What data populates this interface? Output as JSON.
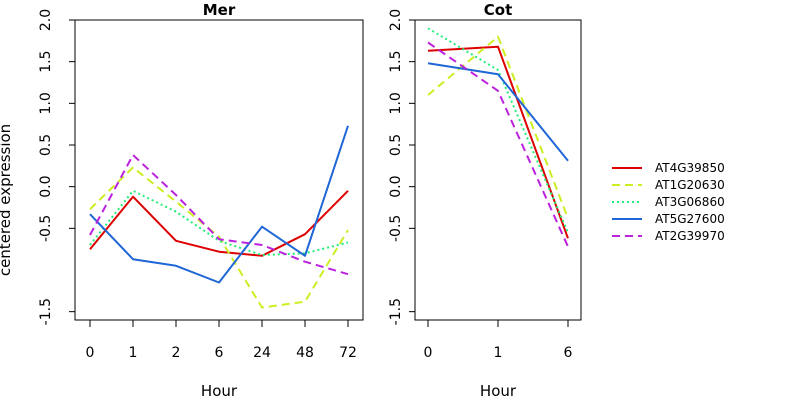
{
  "figure": {
    "ylabel": "centered expression",
    "legend": {
      "placement": "right",
      "entries": [
        {
          "name": "AT4G39850",
          "color": "#dd0000",
          "dash": "solid"
        },
        {
          "name": "AT1G20630",
          "color": "#ccee22",
          "dash": "dashed"
        },
        {
          "name": "AT3G06860",
          "color": "#22ee77",
          "dash": "dotted"
        },
        {
          "name": "AT5G27600",
          "color": "#1f66d6",
          "dash": "solid"
        },
        {
          "name": "AT2G39970",
          "color": "#bb22dd",
          "dash": "dashed"
        }
      ]
    }
  },
  "chart_data": [
    {
      "type": "line",
      "title": "Mer",
      "xlabel": "Hour",
      "categories": [
        "0",
        "1",
        "2",
        "6",
        "24",
        "48",
        "72"
      ],
      "ylim": [
        -1.6,
        2.0
      ],
      "yticks": [
        -1.5,
        -0.5,
        0.0,
        0.5,
        1.0,
        1.5,
        2.0
      ],
      "ytick_labels": [
        "-1.5",
        "-0.5",
        "0.0",
        "0.5",
        "1.0",
        "1.5",
        "2.0"
      ],
      "series": [
        {
          "name": "AT4G39850",
          "values": [
            -0.75,
            -0.12,
            -0.65,
            -0.78,
            -0.83,
            -0.57,
            -0.05
          ]
        },
        {
          "name": "AT1G20630",
          "values": [
            -0.27,
            0.23,
            -0.18,
            -0.6,
            -1.45,
            -1.38,
            -0.52
          ]
        },
        {
          "name": "AT3G06860",
          "values": [
            -0.7,
            -0.05,
            -0.3,
            -0.65,
            -0.82,
            -0.8,
            -0.67
          ]
        },
        {
          "name": "AT5G27600",
          "values": [
            -0.33,
            -0.87,
            -0.95,
            -1.15,
            -0.48,
            -0.83,
            0.73
          ]
        },
        {
          "name": "AT2G39970",
          "values": [
            -0.58,
            0.38,
            -0.1,
            -0.63,
            -0.7,
            -0.9,
            -1.05
          ]
        }
      ]
    },
    {
      "type": "line",
      "title": "Cot",
      "xlabel": "Hour",
      "categories": [
        "0",
        "1",
        "6"
      ],
      "ylim": [
        -1.6,
        2.0
      ],
      "yticks": [
        -1.5,
        -0.5,
        0.0,
        0.5,
        1.0,
        1.5,
        2.0
      ],
      "ytick_labels": [
        "-1.5",
        "-0.5",
        "0.0",
        "0.5",
        "1.0",
        "1.5",
        "2.0"
      ],
      "series": [
        {
          "name": "AT4G39850",
          "values": [
            1.63,
            1.68,
            -0.62
          ]
        },
        {
          "name": "AT1G20630",
          "values": [
            1.1,
            1.8,
            -0.38
          ]
        },
        {
          "name": "AT3G06860",
          "values": [
            1.9,
            1.4,
            -0.55
          ]
        },
        {
          "name": "AT5G27600",
          "values": [
            1.48,
            1.35,
            0.31
          ]
        },
        {
          "name": "AT2G39970",
          "values": [
            1.73,
            1.15,
            -0.72
          ]
        }
      ]
    }
  ]
}
